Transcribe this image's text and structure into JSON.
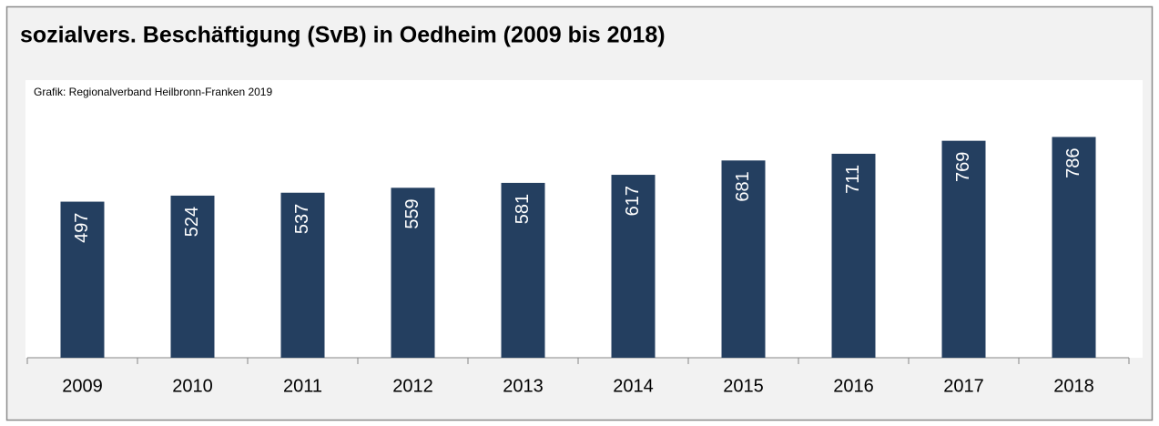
{
  "chart_data": {
    "type": "bar",
    "title": "sozialvers. Beschäftigung (SvB) in Oedheim (2009 bis 2018)",
    "source": "Grafik: Regionalverband Heilbronn-Franken 2019",
    "categories": [
      "2009",
      "2010",
      "2011",
      "2012",
      "2013",
      "2014",
      "2015",
      "2016",
      "2017",
      "2018"
    ],
    "values": [
      497,
      524,
      537,
      559,
      581,
      617,
      681,
      711,
      769,
      786
    ],
    "color": "#243f60",
    "ylim": [
      -200,
      1040
    ]
  }
}
